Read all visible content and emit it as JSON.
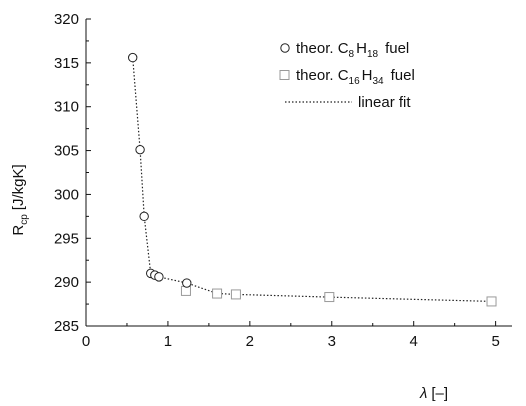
{
  "chart_data": {
    "type": "scatter",
    "xlabel_symbol": "λ",
    "xlabel_unit": "[–]",
    "ylabel_main": "R",
    "ylabel_sub": "cp",
    "ylabel_unit": "[J/kgK]",
    "xlim": [
      0,
      5.2
    ],
    "ylim": [
      285,
      320
    ],
    "x_ticks": [
      0,
      1,
      2,
      3,
      4,
      5
    ],
    "y_ticks": [
      285,
      290,
      295,
      300,
      305,
      310,
      315,
      320
    ],
    "x_tick_labels": [
      "0",
      "1",
      "2",
      "3",
      "4",
      "5"
    ],
    "y_tick_labels": [
      "285",
      "290",
      "295",
      "300",
      "305",
      "310",
      "315",
      "320"
    ],
    "grid": false,
    "legend_position": "top-right",
    "series": [
      {
        "name": "theor. C8H18 fuel",
        "marker": "circle",
        "x": [
          0.57,
          0.66,
          0.71,
          0.79,
          0.84,
          0.89,
          1.23
        ],
        "y": [
          315.6,
          305.1,
          297.5,
          291.0,
          290.8,
          290.6,
          289.9
        ]
      },
      {
        "name": "theor. C16H34 fuel",
        "marker": "square",
        "x": [
          1.22,
          1.6,
          1.83,
          2.97,
          4.95
        ],
        "y": [
          289.0,
          288.7,
          288.6,
          288.3,
          287.8
        ]
      },
      {
        "name": "linear fit",
        "marker": "dotted-line",
        "x": [
          0.57,
          0.66,
          0.71,
          0.79,
          0.84,
          0.89,
          1.23,
          1.6,
          1.83,
          2.97,
          4.95
        ],
        "y": [
          315.6,
          305.1,
          297.5,
          291.0,
          290.8,
          290.6,
          289.9,
          288.7,
          288.6,
          288.3,
          287.8
        ]
      }
    ],
    "legend": [
      {
        "prefix": "theor. C",
        "n1": "8",
        "mid": "H",
        "n2": "18",
        "suffix": "fuel"
      },
      {
        "prefix": "theor. C",
        "n1": "16",
        "mid": "H",
        "n2": "34",
        "suffix": "fuel"
      },
      {
        "label": "linear fit"
      }
    ]
  }
}
